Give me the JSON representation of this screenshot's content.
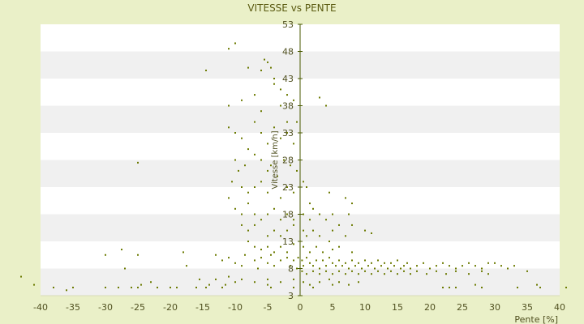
{
  "chart_data": {
    "type": "scatter",
    "title": "VITESSE vs PENTE",
    "xlabel": "Pente [%]",
    "ylabel": "Vitesse [km/h]",
    "xlim": [
      -40,
      40
    ],
    "ylim": [
      3,
      53
    ],
    "xticks": [
      -40,
      -35,
      -30,
      -25,
      -20,
      -15,
      -10,
      -5,
      0,
      5,
      10,
      15,
      20,
      25,
      30,
      35,
      40
    ],
    "yticks": [
      3,
      8,
      13,
      18,
      23,
      28,
      33,
      38,
      43,
      48,
      53
    ],
    "grid": "alternating horizontal bands",
    "legend": "none",
    "colors": {
      "background": "#eaf0c8",
      "plot": "#ffffff",
      "band": "#f0f0f0",
      "marker": "#6b7a00",
      "axis": "#4a5a00"
    },
    "series": [
      {
        "points": [
          [
            -11,
            48.5
          ],
          [
            -10,
            49.5
          ],
          [
            -8,
            45
          ],
          [
            -6,
            44.5
          ],
          [
            -5.5,
            46.5
          ],
          [
            -5,
            46
          ],
          [
            -4.5,
            45
          ],
          [
            -4,
            43
          ],
          [
            -4,
            42
          ],
          [
            -3,
            41
          ],
          [
            -2,
            40
          ],
          [
            -14.5,
            44.5
          ],
          [
            -11,
            38
          ],
          [
            -9,
            39
          ],
          [
            -7,
            40
          ],
          [
            -6,
            37
          ],
          [
            -3,
            38
          ],
          [
            -2,
            35
          ],
          [
            -1,
            39
          ],
          [
            -0.5,
            35
          ],
          [
            -11,
            34
          ],
          [
            -10,
            33
          ],
          [
            -9,
            32
          ],
          [
            -8,
            30
          ],
          [
            -7,
            35
          ],
          [
            -6,
            33
          ],
          [
            -5,
            31
          ],
          [
            -4,
            34
          ],
          [
            -3,
            32
          ],
          [
            -2,
            33
          ],
          [
            -1,
            31
          ],
          [
            3,
            39.5
          ],
          [
            4,
            38
          ],
          [
            -10,
            28
          ],
          [
            -9.5,
            26
          ],
          [
            -8.5,
            27
          ],
          [
            -7,
            29
          ],
          [
            -6,
            28
          ],
          [
            -5,
            26
          ],
          [
            -4.5,
            27
          ],
          [
            -3.5,
            25
          ],
          [
            -2.5,
            28
          ],
          [
            -1.5,
            27
          ],
          [
            -0.5,
            26
          ],
          [
            -10.5,
            24
          ],
          [
            -9,
            23
          ],
          [
            -8,
            22
          ],
          [
            -7,
            23
          ],
          [
            -6,
            24
          ],
          [
            -5,
            22
          ],
          [
            -3,
            21
          ],
          [
            -2,
            23
          ],
          [
            -1,
            22
          ],
          [
            0.5,
            24
          ],
          [
            1,
            23
          ],
          [
            1.5,
            20
          ],
          [
            4.5,
            22
          ],
          [
            7,
            21
          ],
          [
            8,
            20
          ],
          [
            -25,
            27.5
          ],
          [
            -11,
            21
          ],
          [
            -10,
            19
          ],
          [
            -9,
            18
          ],
          [
            -8,
            20
          ],
          [
            -7,
            18
          ],
          [
            -6,
            17
          ],
          [
            -5,
            18
          ],
          [
            -4,
            19
          ],
          [
            -3,
            17
          ],
          [
            -2,
            18
          ],
          [
            -1,
            17
          ],
          [
            0.5,
            18
          ],
          [
            1.5,
            17
          ],
          [
            2,
            19
          ],
          [
            3,
            18
          ],
          [
            4,
            17
          ],
          [
            5,
            18
          ],
          [
            6,
            16
          ],
          [
            7.5,
            18
          ],
          [
            -9,
            16
          ],
          [
            -8,
            15
          ],
          [
            -7,
            16
          ],
          [
            -5,
            14
          ],
          [
            -4,
            15
          ],
          [
            -3,
            14
          ],
          [
            -2,
            15
          ],
          [
            -1,
            16
          ],
          [
            0.5,
            15
          ],
          [
            1,
            14
          ],
          [
            2,
            15
          ],
          [
            3,
            14
          ],
          [
            4.5,
            13
          ],
          [
            5,
            15
          ],
          [
            7,
            14
          ],
          [
            8,
            16
          ],
          [
            10,
            15
          ],
          [
            11,
            14.5
          ],
          [
            -8,
            13
          ],
          [
            -7,
            12
          ],
          [
            -6,
            11.5
          ],
          [
            -5,
            12
          ],
          [
            -4,
            11
          ],
          [
            -3,
            12
          ],
          [
            -2,
            11
          ],
          [
            -1,
            12.5
          ],
          [
            0.5,
            12
          ],
          [
            1.5,
            11
          ],
          [
            2.5,
            12
          ],
          [
            3.5,
            11
          ],
          [
            5,
            11.5
          ],
          [
            6,
            12
          ],
          [
            8,
            11
          ],
          [
            -30,
            10.5
          ],
          [
            -27.5,
            11.5
          ],
          [
            -25,
            10.5
          ],
          [
            -27,
            8
          ],
          [
            -18,
            11
          ],
          [
            -17.5,
            8.5
          ],
          [
            -13,
            10.5
          ],
          [
            -12,
            9.5
          ],
          [
            -11,
            10
          ],
          [
            -10,
            9
          ],
          [
            -9,
            8.5
          ],
          [
            -8.5,
            10.5
          ],
          [
            -7,
            9.5
          ],
          [
            -6.5,
            8
          ],
          [
            -6,
            10
          ],
          [
            -5,
            9
          ],
          [
            -4.5,
            10.5
          ],
          [
            -4,
            8.5
          ],
          [
            -3,
            9.5
          ],
          [
            -2,
            10
          ],
          [
            -1.5,
            8.5
          ],
          [
            -1,
            9.5
          ],
          [
            -0.5,
            8
          ],
          [
            -0.3,
            10
          ],
          [
            0.3,
            9.5
          ],
          [
            0.5,
            8.5
          ],
          [
            1,
            10
          ],
          [
            1.5,
            9
          ],
          [
            2,
            8.5
          ],
          [
            2.5,
            9.5
          ],
          [
            3,
            8
          ],
          [
            3.5,
            9.5
          ],
          [
            4,
            8.5
          ],
          [
            4.5,
            10
          ],
          [
            5,
            9
          ],
          [
            5.5,
            8.5
          ],
          [
            6,
            9.5
          ],
          [
            6.5,
            8.5
          ],
          [
            7,
            9
          ],
          [
            7.5,
            8
          ],
          [
            8,
            9.5
          ],
          [
            8.5,
            8.5
          ],
          [
            9,
            9
          ],
          [
            9.5,
            8
          ],
          [
            10,
            9.5
          ],
          [
            10.5,
            8.5
          ],
          [
            11,
            9
          ],
          [
            11.5,
            8
          ],
          [
            12,
            9.5
          ],
          [
            12.5,
            8.5
          ],
          [
            13,
            9
          ],
          [
            13.5,
            8
          ],
          [
            14,
            9
          ],
          [
            14.5,
            8.5
          ],
          [
            15,
            9.5
          ],
          [
            15.5,
            8
          ],
          [
            16,
            8.5
          ],
          [
            16.5,
            9
          ],
          [
            17,
            8
          ],
          [
            18,
            8.5
          ],
          [
            19,
            9
          ],
          [
            20,
            8
          ],
          [
            21,
            8.5
          ],
          [
            22,
            9
          ],
          [
            23,
            8.5
          ],
          [
            24,
            8
          ],
          [
            25,
            8.5
          ],
          [
            26,
            9
          ],
          [
            27,
            8.5
          ],
          [
            28,
            8
          ],
          [
            29,
            9
          ],
          [
            30,
            9
          ],
          [
            31,
            8.5
          ],
          [
            32,
            8
          ],
          [
            33,
            8.5
          ],
          [
            35,
            7.5
          ],
          [
            0.3,
            7.5
          ],
          [
            1,
            7
          ],
          [
            2,
            7.5
          ],
          [
            3,
            7
          ],
          [
            4,
            7.5
          ],
          [
            5,
            7
          ],
          [
            6,
            7.5
          ],
          [
            7,
            7
          ],
          [
            8,
            7.5
          ],
          [
            9,
            7
          ],
          [
            10,
            7.5
          ],
          [
            11,
            7
          ],
          [
            12,
            7.5
          ],
          [
            13,
            7
          ],
          [
            14,
            7.5
          ],
          [
            15,
            7
          ],
          [
            16,
            7.5
          ],
          [
            17,
            7
          ],
          [
            18,
            7.5
          ],
          [
            19.5,
            7
          ],
          [
            21,
            7.5
          ],
          [
            22.5,
            7
          ],
          [
            24,
            7.5
          ],
          [
            26,
            7
          ],
          [
            28,
            7.5
          ],
          [
            29,
            7
          ],
          [
            -23,
            5.5
          ],
          [
            -15.5,
            6
          ],
          [
            -13,
            6
          ],
          [
            -11,
            6.5
          ],
          [
            -10,
            5.5
          ],
          [
            -9,
            6
          ],
          [
            -7,
            5.5
          ],
          [
            -5,
            6
          ],
          [
            -3,
            5.5
          ],
          [
            -1,
            6
          ],
          [
            0.5,
            5.5
          ],
          [
            1.5,
            5
          ],
          [
            3,
            5.5
          ],
          [
            4.5,
            6
          ],
          [
            5,
            5
          ],
          [
            6,
            5.5
          ],
          [
            7.5,
            5
          ],
          [
            9,
            5.5
          ],
          [
            -43,
            6.5
          ],
          [
            -41,
            5
          ],
          [
            -36,
            4
          ],
          [
            -38,
            4.5
          ],
          [
            -35,
            4.5
          ],
          [
            -30,
            4.5
          ],
          [
            -28,
            4.5
          ],
          [
            -26,
            4.5
          ],
          [
            -25,
            4.5
          ],
          [
            -24.5,
            5
          ],
          [
            -22,
            4.5
          ],
          [
            -20,
            4.5
          ],
          [
            -19,
            4.5
          ],
          [
            -16,
            4.5
          ],
          [
            -14.5,
            4.5
          ],
          [
            -14,
            5
          ],
          [
            -12,
            4.5
          ],
          [
            -11.5,
            5
          ],
          [
            -5,
            5
          ],
          [
            -4.5,
            4.5
          ],
          [
            -1,
            4.5
          ],
          [
            2,
            4.5
          ],
          [
            22,
            4.5
          ],
          [
            23,
            4.5
          ],
          [
            24,
            4.5
          ],
          [
            27,
            5
          ],
          [
            28,
            4.5
          ],
          [
            33.5,
            4.5
          ],
          [
            36.5,
            5
          ],
          [
            37,
            4.5
          ],
          [
            41,
            4.5
          ]
        ]
      }
    ]
  }
}
